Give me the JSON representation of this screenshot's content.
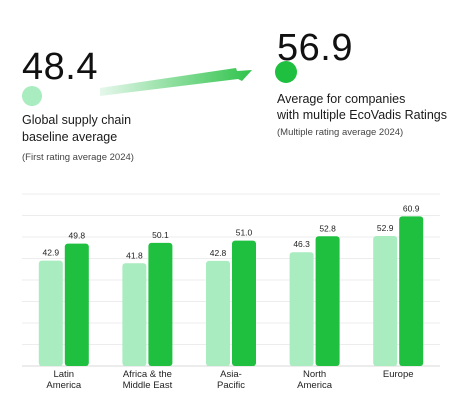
{
  "header": {
    "left": {
      "value": "48.4",
      "label_line1": "Global supply chain",
      "label_line2": "baseline average",
      "note": "(First rating average 2024)",
      "color": "#a8ecc0"
    },
    "right": {
      "value": "56.9",
      "label_line1": "Average for companies",
      "label_line2": "with multiple EcoVadis Ratings",
      "note": "(Multiple rating average 2024)",
      "color": "#1fbf3f"
    },
    "arrow_colors": [
      "#e6f7ec",
      "#2ec34a"
    ]
  },
  "chart_data": {
    "type": "bar",
    "categories": [
      [
        "Latin",
        "America"
      ],
      [
        "Africa & the",
        "Middle East"
      ],
      [
        "Asia-",
        "Pacific"
      ],
      [
        "North",
        "America"
      ],
      [
        "Europe"
      ]
    ],
    "series": [
      {
        "values": [
          42.9,
          41.8,
          42.8,
          46.3,
          52.9
        ],
        "color": "#a8ecc0"
      },
      {
        "values": [
          49.8,
          50.1,
          51.0,
          52.8,
          60.9
        ],
        "color": "#1fbf3f"
      }
    ],
    "ylim": [
      0,
      70
    ],
    "grid": true,
    "value_labels": true
  }
}
